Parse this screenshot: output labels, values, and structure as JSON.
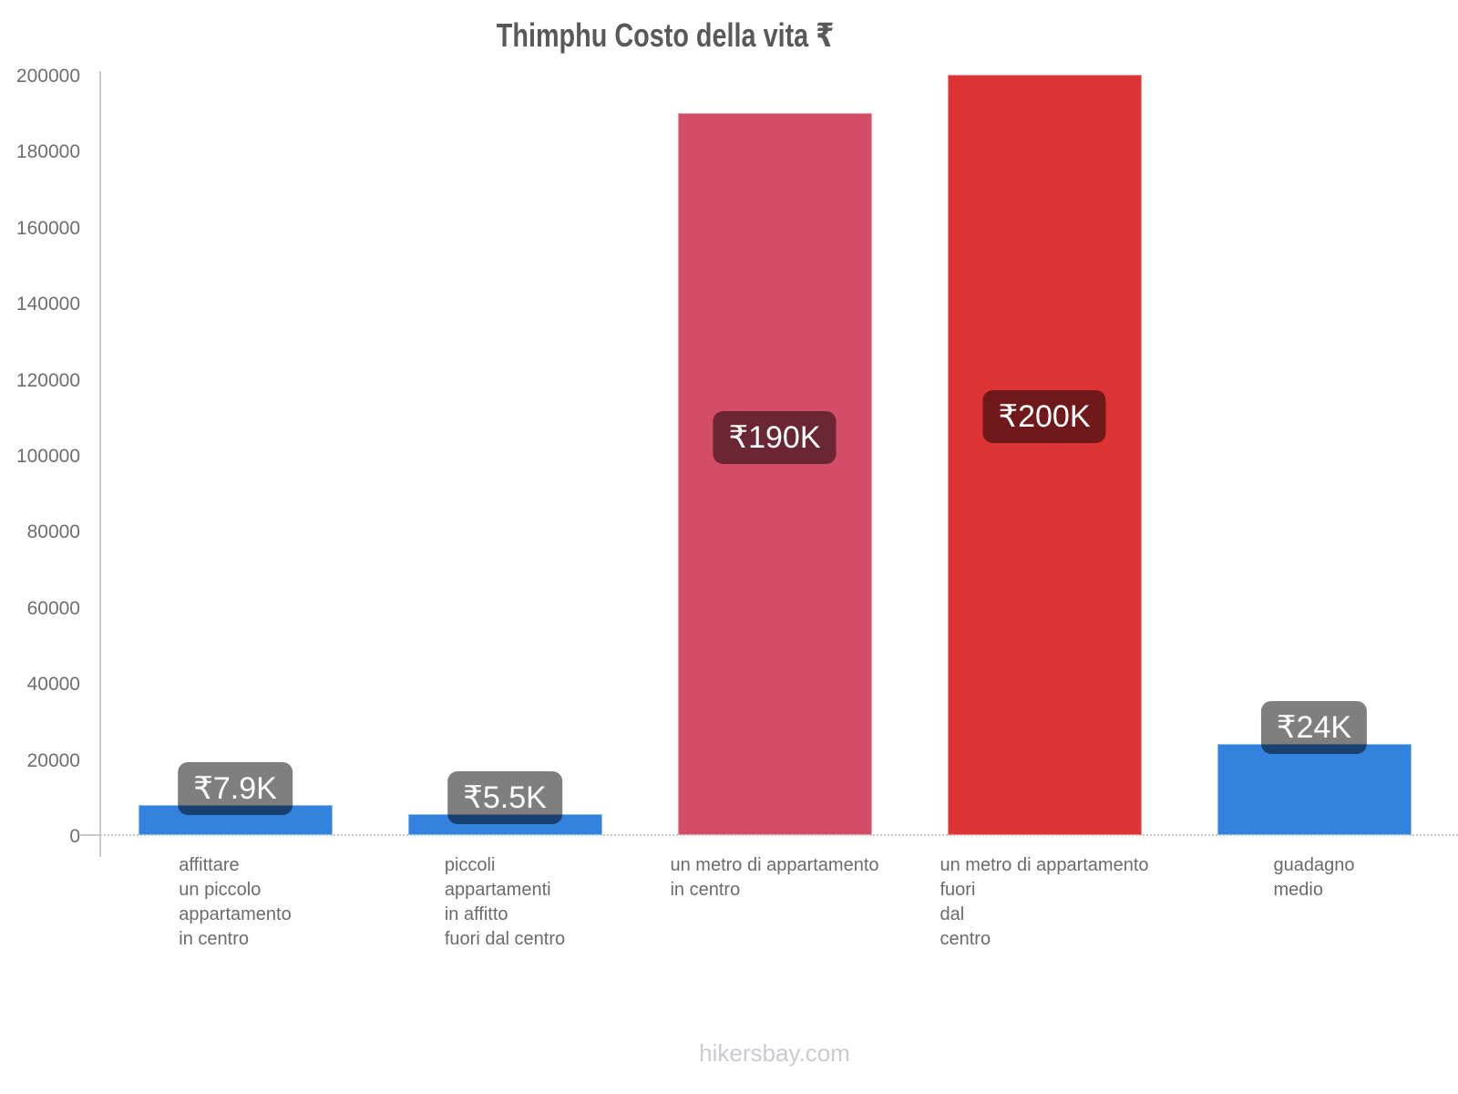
{
  "title": "Thimphu Costo della vita ₹",
  "footer": "hikersbay.com",
  "chart_data": {
    "type": "bar",
    "title": "Thimphu Costo della vita ₹",
    "categories": [
      [
        "affittare",
        "un piccolo",
        "appartamento",
        "in centro"
      ],
      [
        "piccoli",
        "appartamenti",
        "in affitto",
        "fuori dal centro"
      ],
      [
        "un metro di appartamento",
        "in centro"
      ],
      [
        "un metro di appartamento",
        "fuori",
        "dal",
        "centro"
      ],
      [
        "guadagno",
        "medio"
      ]
    ],
    "values": [
      7900,
      5500,
      190000,
      200000,
      24000
    ],
    "bar_labels": [
      "₹7.9K",
      "₹5.5K",
      "₹190K",
      "₹200K",
      "₹24K"
    ],
    "bar_colors": [
      "#3382DE",
      "#3382DE",
      "#D44D67",
      "#DE3335",
      "#3382DE"
    ],
    "ylim": [
      0,
      200000
    ],
    "yticks": [
      0,
      20000,
      40000,
      60000,
      80000,
      100000,
      120000,
      140000,
      160000,
      180000,
      200000
    ],
    "grid": false,
    "legend": false,
    "badge_bg": "rgba(0,0,0,0.5)",
    "badge_text_color": "#ffffff",
    "axis_color": "#c9c9c9",
    "tick_label_color": "#6b6b6b",
    "y_label_color": "#6e6e6e",
    "title_color": "#58595b",
    "footer_color": "#c9cbd0",
    "background_color": "#ffffff"
  }
}
